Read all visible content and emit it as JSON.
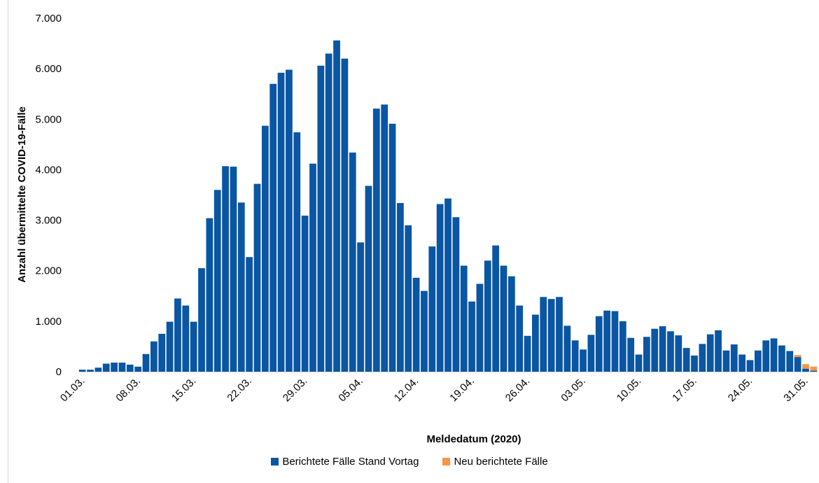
{
  "chart_data": {
    "type": "bar",
    "stacked": true,
    "xlabel": "Meldedatum (2020)",
    "ylabel": "Anzahl übermittelte COVID-19-Fälle",
    "ylim": [
      0,
      7000
    ],
    "yticks": [
      0,
      1000,
      2000,
      3000,
      4000,
      5000,
      6000,
      7000
    ],
    "ytick_labels": [
      "0",
      "1.000",
      "2.000",
      "3.000",
      "4.000",
      "5.000",
      "6.000",
      "7.000"
    ],
    "xtick_labels": [
      {
        "index": 0,
        "label": "01.03."
      },
      {
        "index": 7,
        "label": "08.03."
      },
      {
        "index": 14,
        "label": "15.03."
      },
      {
        "index": 21,
        "label": "22.03."
      },
      {
        "index": 28,
        "label": "29.03."
      },
      {
        "index": 35,
        "label": "05.04."
      },
      {
        "index": 42,
        "label": "12.04."
      },
      {
        "index": 49,
        "label": "19.04."
      },
      {
        "index": 56,
        "label": "26.04."
      },
      {
        "index": 63,
        "label": "03.05."
      },
      {
        "index": 70,
        "label": "10.05."
      },
      {
        "index": 77,
        "label": "17.05."
      },
      {
        "index": 84,
        "label": "24.05."
      },
      {
        "index": 91,
        "label": "31.05."
      }
    ],
    "categories": [
      "01.03.",
      "02.03.",
      "03.03.",
      "04.03.",
      "05.03.",
      "06.03.",
      "07.03.",
      "08.03.",
      "09.03.",
      "10.03.",
      "11.03.",
      "12.03.",
      "13.03.",
      "14.03.",
      "15.03.",
      "16.03.",
      "17.03.",
      "18.03.",
      "19.03.",
      "20.03.",
      "21.03.",
      "22.03.",
      "23.03.",
      "24.03.",
      "25.03.",
      "26.03.",
      "27.03.",
      "28.03.",
      "29.03.",
      "30.03.",
      "31.03.",
      "01.04.",
      "02.04.",
      "03.04.",
      "04.04.",
      "05.04.",
      "06.04.",
      "07.04.",
      "08.04.",
      "09.04.",
      "10.04.",
      "11.04.",
      "12.04.",
      "13.04.",
      "14.04.",
      "15.04.",
      "16.04.",
      "17.04.",
      "18.04.",
      "19.04.",
      "20.04.",
      "21.04.",
      "22.04.",
      "23.04.",
      "24.04.",
      "25.04.",
      "26.04.",
      "27.04.",
      "28.04.",
      "29.04.",
      "30.04.",
      "01.05.",
      "02.05.",
      "03.05.",
      "04.05.",
      "05.05.",
      "06.05.",
      "07.05.",
      "08.05.",
      "09.05.",
      "10.05.",
      "11.05.",
      "12.05.",
      "13.05.",
      "14.05.",
      "15.05.",
      "16.05.",
      "17.05.",
      "18.05.",
      "19.05.",
      "20.05.",
      "21.05.",
      "22.05.",
      "23.05.",
      "24.05.",
      "25.05.",
      "26.05.",
      "27.05.",
      "28.05.",
      "29.05.",
      "30.05.",
      "31.05.",
      "01.06."
    ],
    "series": [
      {
        "name": "Berichtete Fälle Stand Vortag",
        "color": "#0a56a3",
        "values": [
          40,
          40,
          80,
          160,
          180,
          180,
          140,
          100,
          350,
          600,
          750,
          990,
          1450,
          1310,
          990,
          2050,
          3040,
          3600,
          4070,
          4060,
          3350,
          2270,
          3720,
          4870,
          5700,
          5920,
          5980,
          4740,
          3090,
          4120,
          6060,
          6300,
          6560,
          6200,
          4340,
          2560,
          3680,
          5210,
          5290,
          4910,
          3340,
          2900,
          1860,
          1600,
          2480,
          3320,
          3430,
          3060,
          2100,
          1390,
          1740,
          2200,
          2500,
          2100,
          1890,
          1310,
          710,
          1130,
          1480,
          1440,
          1480,
          910,
          620,
          440,
          730,
          1100,
          1210,
          1200,
          1000,
          670,
          340,
          690,
          850,
          900,
          800,
          720,
          470,
          320,
          550,
          740,
          820,
          420,
          540,
          340,
          230,
          420,
          620,
          660,
          520,
          410,
          290,
          60,
          20
        ]
      },
      {
        "name": "Neu berichtete Fälle",
        "color": "#f79646",
        "values": [
          0,
          0,
          0,
          0,
          0,
          0,
          0,
          0,
          0,
          0,
          0,
          0,
          0,
          0,
          0,
          0,
          0,
          0,
          0,
          0,
          0,
          0,
          0,
          0,
          0,
          0,
          0,
          0,
          0,
          0,
          0,
          0,
          0,
          0,
          0,
          0,
          0,
          0,
          0,
          0,
          0,
          0,
          0,
          0,
          0,
          0,
          0,
          0,
          0,
          0,
          0,
          0,
          0,
          0,
          0,
          0,
          0,
          0,
          0,
          0,
          0,
          0,
          0,
          0,
          0,
          0,
          0,
          0,
          0,
          0,
          0,
          0,
          0,
          0,
          0,
          0,
          0,
          0,
          0,
          0,
          0,
          0,
          0,
          0,
          0,
          0,
          0,
          0,
          0,
          0,
          40,
          90,
          80
        ]
      }
    ],
    "legend": "bottom-center",
    "grid": false
  },
  "legend_items": [
    {
      "label": "Berichtete Fälle Stand Vortag",
      "color": "#0a56a3"
    },
    {
      "label": "Neu berichtete Fälle",
      "color": "#f79646"
    }
  ]
}
